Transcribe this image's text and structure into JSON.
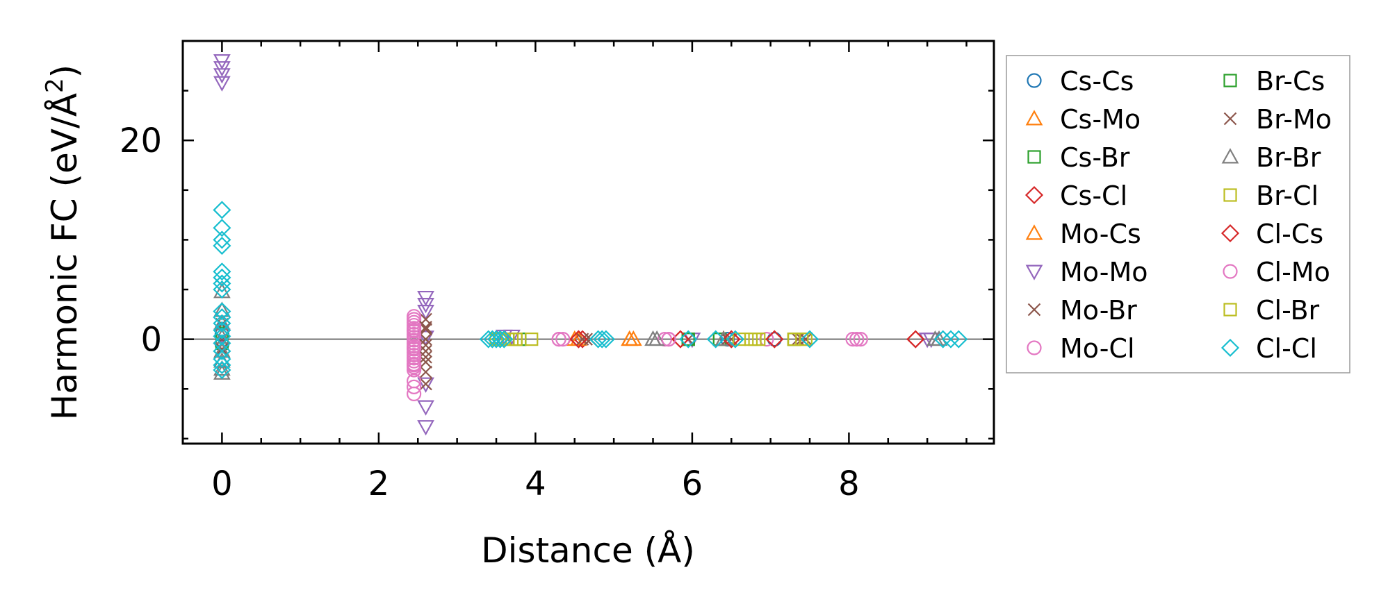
{
  "chart_data": {
    "type": "scatter",
    "xlabel": "Distance (Å)",
    "ylabel_main": "Harmonic FC (eV/Å",
    "ylabel_sup": "2",
    "ylabel_close": ")",
    "xlim": [
      -0.5,
      9.85
    ],
    "ylim": [
      -10.5,
      30.0
    ],
    "xticks": [
      0,
      2,
      4,
      6,
      8
    ],
    "yticks": [
      0,
      20
    ],
    "x_minor_step": 0.5,
    "y_minor_step": 5,
    "zero_line": true,
    "legend_position": "right",
    "colors": {
      "blue": "#1f77b4",
      "orange": "#ff7f0e",
      "green": "#2ca02c",
      "red": "#d62728",
      "purple": "#9467bd",
      "brown": "#8c564b",
      "pink": "#e377c2",
      "gray": "#7f7f7f",
      "olive": "#bcbd22",
      "cyan": "#17becf"
    },
    "series": [
      {
        "name": "Cs-Cs",
        "color": "#1f77b4",
        "marker": "circle",
        "x": [
          0,
          0,
          0,
          6.45,
          7.05
        ],
        "y": [
          0.5,
          -0.5,
          1.0,
          0,
          0
        ]
      },
      {
        "name": "Cs-Mo",
        "color": "#ff7f0e",
        "marker": "triangle-up",
        "x": [
          4.5,
          5.2,
          5.25,
          6.4
        ],
        "y": [
          0,
          0,
          0,
          0
        ]
      },
      {
        "name": "Cs-Br",
        "color": "#2ca02c",
        "marker": "square",
        "x": [
          0,
          0,
          3.8,
          5.95,
          6.35,
          7.3
        ],
        "y": [
          0.6,
          -0.4,
          0,
          0,
          0,
          0
        ]
      },
      {
        "name": "Cs-Cl",
        "color": "#d62728",
        "marker": "diamond",
        "x": [
          4.55,
          4.6,
          5.85,
          6.5,
          7.05,
          8.85
        ],
        "y": [
          0,
          0,
          0,
          0,
          0,
          0
        ]
      },
      {
        "name": "Mo-Cs",
        "color": "#ff7f0e",
        "marker": "triangle-up",
        "x": [
          4.55,
          5.2,
          6.4
        ],
        "y": [
          0,
          0,
          0
        ]
      },
      {
        "name": "Mo-Mo",
        "color": "#9467bd",
        "marker": "triangle-down",
        "x": [
          0,
          0,
          0,
          0,
          0,
          2.6,
          2.6,
          2.6,
          2.6,
          2.6,
          2.6,
          2.6,
          3.6,
          3.7,
          6.0,
          9.0,
          9.05
        ],
        "y": [
          28.0,
          27.3,
          26.6,
          25.8,
          0.4,
          4.2,
          3.5,
          2.8,
          0.2,
          -4.5,
          -6.8,
          -8.8,
          0.3,
          0.3,
          0,
          0,
          0
        ]
      },
      {
        "name": "Mo-Br",
        "color": "#8c564b",
        "marker": "x",
        "x": [
          0,
          0,
          0,
          2.6,
          2.6,
          2.6,
          2.6,
          2.6,
          2.6,
          2.6,
          4.6,
          4.7,
          5.95,
          6.45,
          6.5,
          7.35,
          7.45
        ],
        "y": [
          1.5,
          0,
          -1.0,
          2.0,
          1.0,
          0,
          -1.2,
          -2.3,
          -3.3,
          -4.5,
          0,
          0,
          0,
          0,
          0,
          0,
          0
        ]
      },
      {
        "name": "Mo-Cl",
        "color": "#e377c2",
        "marker": "circle",
        "x": [
          2.45,
          2.45,
          2.45,
          2.45,
          2.45,
          2.45,
          2.45,
          2.45,
          2.45,
          2.45,
          2.45,
          2.45,
          2.45,
          2.45,
          2.45,
          2.45,
          2.45,
          2.45,
          2.45,
          2.45,
          2.45,
          2.45,
          4.3,
          4.35,
          5.65,
          5.7,
          6.95,
          8.05,
          8.1,
          8.15
        ],
        "y": [
          2.3,
          2.0,
          1.7,
          1.4,
          1.1,
          0.8,
          0.5,
          0.2,
          -0.1,
          -0.4,
          -0.7,
          -1.0,
          -1.3,
          -1.6,
          -1.9,
          -2.2,
          -2.5,
          -2.8,
          -3.1,
          -4.2,
          -4.8,
          -5.5,
          0,
          0,
          0,
          0,
          0,
          0,
          0,
          0
        ]
      },
      {
        "name": "Br-Cs",
        "color": "#2ca02c",
        "marker": "square",
        "x": [
          3.8,
          5.95,
          6.35,
          7.3
        ],
        "y": [
          0,
          0,
          0,
          0
        ]
      },
      {
        "name": "Br-Mo",
        "color": "#8c564b",
        "marker": "x",
        "x": [
          2.6,
          2.6,
          2.6,
          4.65,
          6.45,
          7.4
        ],
        "y": [
          1.2,
          -0.6,
          -1.8,
          0,
          0,
          0
        ]
      },
      {
        "name": "Br-Br",
        "color": "#7f7f7f",
        "marker": "triangle-up",
        "x": [
          0,
          0,
          0,
          0,
          0,
          0,
          0,
          0,
          3.6,
          5.5,
          5.55,
          6.4,
          9.1,
          9.15
        ],
        "y": [
          4.8,
          2.9,
          1.6,
          0.2,
          -1.2,
          -2.2,
          -3.0,
          -3.4,
          0,
          0,
          0,
          0,
          0,
          0
        ]
      },
      {
        "name": "Br-Cl",
        "color": "#bcbd22",
        "marker": "square",
        "x": [
          3.5,
          3.55,
          3.65,
          3.7,
          3.75,
          3.95,
          6.6,
          6.75,
          6.85,
          7.3,
          7.4,
          7.45
        ],
        "y": [
          0,
          0,
          0,
          0,
          0,
          0,
          0,
          0,
          0,
          0,
          0,
          0
        ]
      },
      {
        "name": "Cl-Cs",
        "color": "#d62728",
        "marker": "diamond",
        "x": [
          4.55,
          5.85,
          6.5,
          7.05,
          8.85
        ],
        "y": [
          0,
          0,
          0,
          0,
          0
        ]
      },
      {
        "name": "Cl-Mo",
        "color": "#e377c2",
        "marker": "circle",
        "x": [
          2.45,
          2.45,
          2.45,
          4.3,
          5.7,
          8.1
        ],
        "y": [
          0.9,
          -0.9,
          -2.6,
          0,
          0,
          0
        ]
      },
      {
        "name": "Cl-Br",
        "color": "#bcbd22",
        "marker": "square",
        "x": [
          3.55,
          3.75,
          6.8,
          7.3
        ],
        "y": [
          0,
          0,
          0,
          0
        ]
      },
      {
        "name": "Cl-Cl",
        "color": "#17becf",
        "marker": "diamond",
        "x": [
          0,
          0,
          0,
          0,
          0,
          0,
          0,
          0,
          0,
          0,
          0,
          0,
          0,
          0,
          0,
          0,
          0,
          0,
          3.4,
          3.45,
          3.5,
          3.55,
          3.6,
          4.8,
          4.85,
          4.9,
          5.95,
          6.3,
          6.55,
          7.5,
          9.2,
          9.3,
          9.4
        ],
        "y": [
          13.0,
          11.2,
          10.0,
          9.4,
          6.8,
          6.2,
          5.6,
          5.0,
          2.8,
          2.2,
          1.6,
          0.9,
          0.3,
          -0.4,
          -1.2,
          -2.0,
          -2.6,
          -3.1,
          0,
          0,
          0,
          0,
          0,
          0,
          0,
          0,
          0,
          0,
          0,
          0,
          0,
          0,
          0
        ]
      }
    ]
  }
}
